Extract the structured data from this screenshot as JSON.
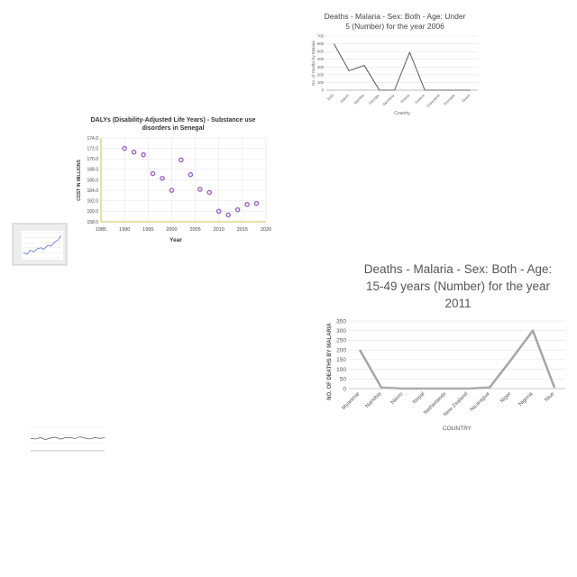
{
  "chart_data": [
    {
      "type": "line",
      "title": "Deaths - Malaria - Sex: Both - Age: Under 5 (Number) for the year 2006",
      "title_lines": [
        "Deaths - Malaria - Sex: Both - Age: Under",
        "5 (Number) for the year 2006"
      ],
      "xlabel": "Country",
      "ylabel": "No. of Deaths by Malaria",
      "categories": [
        "DJD",
        "Gabon",
        "Gambia",
        "Georgia",
        "Germany",
        "Ghana",
        "Greece",
        "Greenland",
        "Grenada",
        "Guam"
      ],
      "values": [
        600,
        250,
        320,
        0,
        0,
        490,
        0,
        0,
        0,
        0
      ],
      "ylim": [
        0,
        700
      ],
      "yticks": [
        "0",
        "100",
        "200",
        "300",
        "400",
        "500",
        "600",
        "700"
      ],
      "color": "#555555",
      "grid": true
    },
    {
      "type": "scatter",
      "title": "DALYs (Disability-Adjusted Life Years) - Substance use disorders in Senegal",
      "title_lines": [
        "DALYs (Disability-Adjusted Life Years) - Substance use",
        "disorders in Senegal"
      ],
      "xlabel": "Year",
      "ylabel": "COST IN MILLIONS",
      "x": [
        1990,
        1992,
        1994,
        1996,
        1998,
        2000,
        2002,
        2004,
        2006,
        2008,
        2010,
        2012,
        2014,
        2016,
        2018
      ],
      "y": [
        172.0,
        171.3,
        170.8,
        167.2,
        166.3,
        164.0,
        169.8,
        167.0,
        164.2,
        163.6,
        160.0,
        159.3,
        160.3,
        161.3,
        161.5
      ],
      "xlim": [
        1985,
        2020
      ],
      "ylim": [
        158.0,
        174.0
      ],
      "xticks": [
        "1985",
        "1990",
        "1995",
        "2000",
        "2005",
        "2010",
        "2015",
        "2020"
      ],
      "yticks": [
        "158.0",
        "160.0",
        "162.0",
        "164.0",
        "166.0",
        "168.0",
        "170.0",
        "172.0",
        "174.0"
      ],
      "color": "#a062c8",
      "grid": true
    },
    {
      "type": "line",
      "title": "",
      "x": [
        1,
        2,
        3,
        4,
        5,
        6,
        7,
        8,
        9,
        10,
        11,
        12
      ],
      "y": [
        20,
        14,
        30,
        24,
        36,
        40,
        34,
        50,
        46,
        62,
        70,
        88
      ],
      "ylim": [
        0,
        100
      ],
      "color": "#4a5cc8",
      "grid": true
    },
    {
      "type": "line",
      "title": "Deaths - Malaria - Sex: Both - Age: 15-49 years (Number) for the year 2011",
      "title_lines": [
        "Deaths - Malaria - Sex: Both - Age:",
        "15-49 years (Number) for the year",
        "2011"
      ],
      "xlabel": "COUNTRY",
      "ylabel": "NO. OF DEATHS BY MALARIA",
      "categories": [
        "Myanmar",
        "Namibia",
        "Nauru",
        "Nepal",
        "Netherlands",
        "New Zealand",
        "Nicaragua",
        "Niger",
        "Nigeria",
        "Niue"
      ],
      "values": [
        200,
        5,
        0,
        0,
        0,
        0,
        5,
        150,
        300,
        5
      ],
      "ylim": [
        0,
        350
      ],
      "yticks": [
        "0",
        "50",
        "100",
        "150",
        "200",
        "250",
        "300",
        "350"
      ],
      "color": "#a6a6a6",
      "grid": true
    },
    {
      "type": "line",
      "title": "",
      "x": [
        1,
        2,
        3,
        4,
        5,
        6,
        7,
        8,
        9,
        10,
        11,
        12,
        13,
        14,
        15,
        16
      ],
      "y": [
        52,
        50,
        56,
        48,
        54,
        58,
        50,
        55,
        57,
        52,
        60,
        54,
        50,
        56,
        53,
        55
      ],
      "ylim": [
        0,
        100
      ],
      "color": "#333333",
      "grid": true
    }
  ]
}
